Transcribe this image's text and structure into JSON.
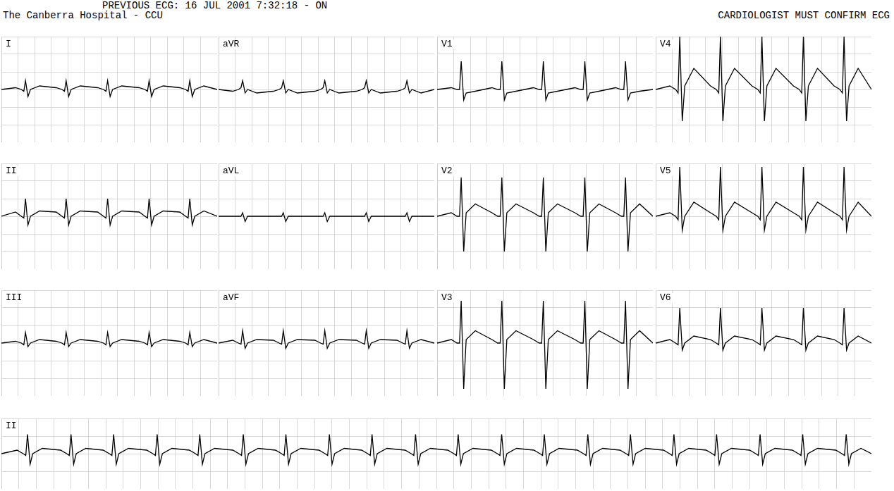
{
  "header": {
    "previous_ecg": "PREVIOUS ECG: 16 JUL 2001  7:32:18 - ON",
    "hospital": "The Canberra Hospital - CCU",
    "notice": "CARDIOLOGIST MUST CONFIRM ECG"
  },
  "chart_data": [
    {
      "type": "line",
      "color": "#000000",
      "grid": true,
      "tick_labels": false,
      "x": [
        0,
        0.17,
        0.24,
        0.27,
        0.29,
        0.32,
        0.35,
        0.46,
        0.66,
        0.73,
        0.76,
        0.78,
        0.81,
        0.84,
        0.95,
        1.16,
        1.23,
        1.26,
        1.28,
        1.31,
        1.34,
        1.45,
        1.66,
        1.73,
        1.76,
        1.78,
        1.81,
        1.84,
        1.95,
        2.15,
        2.22,
        2.25,
        2.27,
        2.3,
        2.33,
        2.44,
        2.6
      ],
      "xlim": [
        0,
        2.6
      ],
      "xticks": [
        0,
        0.2,
        0.4,
        0.6,
        0.8,
        1,
        1.2,
        1.4,
        1.6,
        1.8,
        2,
        2.2,
        2.4,
        2.6
      ],
      "ylim": [
        -1.5,
        1.5
      ],
      "yticks": [
        -1.5,
        -1,
        -0.5,
        0,
        0.5,
        1,
        1.5
      ],
      "series": [
        {
          "name": "I",
          "values": [
            0,
            0.05,
            0,
            -0.05,
            0.25,
            -0.2,
            0,
            0.1,
            0.05,
            0,
            -0.05,
            0.25,
            -0.2,
            0,
            0.1,
            0.05,
            0,
            -0.05,
            0.25,
            -0.2,
            0,
            0.1,
            0.05,
            0,
            -0.05,
            0.25,
            -0.2,
            0,
            0.1,
            0.05,
            0,
            -0.05,
            0.25,
            -0.2,
            0,
            0.1,
            0
          ]
        },
        {
          "name": "II",
          "values": [
            0,
            0.12,
            0,
            -0.05,
            0.5,
            -0.25,
            0,
            0.15,
            0.12,
            0,
            -0.05,
            0.5,
            -0.25,
            0,
            0.15,
            0.12,
            0,
            -0.05,
            0.5,
            -0.25,
            0,
            0.15,
            0.12,
            0,
            -0.05,
            0.5,
            -0.25,
            0,
            0.15,
            0.12,
            0,
            -0.05,
            0.5,
            -0.25,
            0,
            0.15,
            0
          ]
        },
        {
          "name": "III",
          "values": [
            0,
            0.05,
            0,
            -0.05,
            0.3,
            -0.1,
            0,
            0.1,
            0.05,
            0,
            -0.05,
            0.3,
            -0.1,
            0,
            0.1,
            0.05,
            0,
            -0.05,
            0.3,
            -0.1,
            0,
            0.1,
            0.05,
            0,
            -0.05,
            0.3,
            -0.1,
            0,
            0.1,
            0.05,
            0,
            -0.05,
            0.3,
            -0.1,
            0,
            0.1,
            0
          ]
        },
        {
          "name": "aVR",
          "values": [
            0,
            -0.05,
            0,
            0.05,
            0.25,
            -0.1,
            0,
            -0.1,
            -0.05,
            0,
            0.05,
            0.25,
            -0.1,
            0,
            -0.1,
            -0.05,
            0,
            0.05,
            0.25,
            -0.1,
            0,
            -0.1,
            -0.05,
            0,
            0.05,
            0.25,
            -0.1,
            0,
            -0.1,
            -0.05,
            0,
            0.05,
            0.25,
            -0.1,
            0,
            -0.1,
            0
          ]
        },
        {
          "name": "aVL",
          "values": [
            0,
            0,
            0,
            0,
            0.1,
            -0.15,
            0,
            0,
            0,
            0,
            0,
            0.1,
            -0.15,
            0,
            0,
            0,
            0,
            0,
            0.1,
            -0.15,
            0,
            0,
            0,
            0,
            0,
            0.1,
            -0.15,
            0,
            0,
            0,
            0,
            0,
            0.1,
            -0.15,
            0,
            0,
            0
          ]
        },
        {
          "name": "aVF",
          "values": [
            0,
            0.08,
            0,
            -0.03,
            0.35,
            -0.15,
            0,
            0.1,
            0.08,
            0,
            -0.03,
            0.35,
            -0.15,
            0,
            0.1,
            0.08,
            0,
            -0.03,
            0.35,
            -0.15,
            0,
            0.1,
            0.08,
            0,
            -0.03,
            0.35,
            -0.15,
            0,
            0.1,
            0.08,
            0,
            -0.03,
            0.35,
            -0.15,
            0,
            0.1,
            0
          ]
        },
        {
          "name": "V1",
          "values": [
            0,
            0.05,
            0,
            0,
            0.8,
            -0.3,
            -0.1,
            -0.05,
            0.05,
            0,
            0,
            0.8,
            -0.3,
            -0.1,
            -0.05,
            0.05,
            0,
            0,
            0.8,
            -0.3,
            -0.1,
            -0.05,
            0.05,
            0,
            0,
            0.8,
            -0.3,
            -0.1,
            -0.05,
            0.05,
            0,
            0,
            0.8,
            -0.3,
            -0.1,
            -0.05,
            0
          ]
        },
        {
          "name": "V2",
          "values": [
            0,
            0.1,
            0,
            0,
            1.1,
            -1,
            0.1,
            0.35,
            0.1,
            0,
            0,
            1.1,
            -1,
            0.1,
            0.35,
            0.1,
            0,
            0,
            1.1,
            -1,
            0.1,
            0.35,
            0.1,
            0,
            0,
            1.1,
            -1,
            0.1,
            0.35,
            0.1,
            0,
            0,
            1.1,
            -1,
            0.1,
            0.35,
            0
          ]
        },
        {
          "name": "V3",
          "values": [
            0,
            0.1,
            0,
            0,
            1.2,
            -1.3,
            0.1,
            0.35,
            0.1,
            0,
            0,
            1.2,
            -1.3,
            0.1,
            0.35,
            0.1,
            0,
            0,
            1.2,
            -1.3,
            0.1,
            0.35,
            0.1,
            0,
            0,
            1.2,
            -1.3,
            0.1,
            0.35,
            0.1,
            0,
            0,
            1.2,
            -1.3,
            0.1,
            0.35,
            0
          ]
        },
        {
          "name": "V4",
          "values": [
            0,
            0.1,
            0,
            -0.1,
            1.5,
            -0.9,
            0.1,
            0.6,
            0.1,
            0,
            -0.1,
            1.5,
            -0.9,
            0.1,
            0.6,
            0.1,
            0,
            -0.1,
            1.5,
            -0.9,
            0.1,
            0.6,
            0.1,
            0,
            -0.1,
            1.5,
            -0.9,
            0.1,
            0.6,
            0.1,
            0,
            -0.1,
            1.5,
            -0.9,
            0.1,
            0.6,
            0
          ]
        },
        {
          "name": "V5",
          "values": [
            0,
            0.1,
            0,
            -0.1,
            1.4,
            -0.4,
            0,
            0.4,
            0.1,
            0,
            -0.1,
            1.4,
            -0.4,
            0,
            0.4,
            0.1,
            0,
            -0.1,
            1.4,
            -0.4,
            0,
            0.4,
            0.1,
            0,
            -0.1,
            1.4,
            -0.4,
            0,
            0.4,
            0.1,
            0,
            -0.1,
            1.4,
            -0.4,
            0,
            0.4,
            0
          ]
        },
        {
          "name": "V6",
          "values": [
            0,
            0.1,
            0,
            -0.05,
            1,
            -0.2,
            0,
            0.2,
            0.1,
            0,
            -0.05,
            1,
            -0.2,
            0,
            0.2,
            0.1,
            0,
            -0.05,
            1,
            -0.2,
            0,
            0.2,
            0.1,
            0,
            -0.05,
            1,
            -0.2,
            0,
            0.2,
            0.1,
            0,
            -0.05,
            1,
            -0.2,
            0,
            0.2,
            0
          ]
        }
      ]
    },
    {
      "type": "line",
      "color": "#000000",
      "grid": true,
      "tick_labels": false,
      "x": [
        0,
        0.18,
        0.25,
        0.28,
        0.3,
        0.33,
        0.36,
        0.47,
        0.68,
        0.75,
        0.78,
        0.8,
        0.83,
        0.86,
        0.97,
        1.17,
        1.24,
        1.27,
        1.29,
        1.32,
        1.35,
        1.46,
        1.67,
        1.74,
        1.77,
        1.79,
        1.82,
        1.85,
        1.96,
        2.16,
        2.23,
        2.26,
        2.28,
        2.31,
        2.34,
        2.45,
        2.66,
        2.73,
        2.76,
        2.78,
        2.81,
        2.84,
        2.95,
        3.15,
        3.22,
        3.25,
        3.27,
        3.3,
        3.33,
        3.44,
        3.65,
        3.72,
        3.75,
        3.77,
        3.8,
        3.83,
        3.94,
        4.14,
        4.21,
        4.24,
        4.26,
        4.29,
        4.32,
        4.43,
        4.64,
        4.71,
        4.74,
        4.76,
        4.79,
        4.82,
        4.93,
        5.13,
        5.2,
        5.23,
        5.25,
        5.28,
        5.31,
        5.42,
        5.63,
        5.7,
        5.73,
        5.75,
        5.78,
        5.81,
        5.92,
        6.12,
        6.19,
        6.22,
        6.24,
        6.27,
        6.3,
        6.41,
        6.62,
        6.69,
        6.72,
        6.74,
        6.77,
        6.8,
        6.91,
        7.11,
        7.18,
        7.21,
        7.23,
        7.26,
        7.29,
        7.4,
        7.61,
        7.68,
        7.71,
        7.73,
        7.76,
        7.79,
        7.9,
        8.1,
        8.17,
        8.2,
        8.22,
        8.25,
        8.28,
        8.39,
        8.6,
        8.67,
        8.7,
        8.72,
        8.75,
        8.78,
        8.89,
        9.09,
        9.16,
        9.19,
        9.21,
        9.24,
        9.27,
        9.38,
        9.59,
        9.66,
        9.69,
        9.71,
        9.74,
        9.77,
        9.88,
        10
      ],
      "xlim": [
        0,
        10
      ],
      "xticks": [
        0,
        0.2,
        0.4,
        0.6,
        0.8,
        1,
        1.2,
        1.4,
        1.6,
        1.8,
        2,
        2.2,
        2.4,
        2.6,
        2.8,
        3,
        3.2,
        3.4,
        3.6,
        3.8,
        4,
        4.2,
        4.4,
        4.6,
        4.8,
        5,
        5.2,
        5.4,
        5.6,
        5.8,
        6,
        6.2,
        6.4,
        6.6,
        6.8,
        7,
        7.2,
        7.4,
        7.6,
        7.8,
        8,
        8.2,
        8.4,
        8.6,
        8.8,
        9,
        9.2,
        9.4,
        9.6,
        9.8,
        10
      ],
      "ylim": [
        -1,
        1
      ],
      "yticks": [
        -1,
        -0.5,
        0,
        0.5,
        1
      ],
      "series": [
        {
          "name": "II",
          "values": [
            0,
            0.1,
            0,
            -0.05,
            0.55,
            -0.3,
            0,
            0.15,
            0.1,
            0,
            -0.05,
            0.55,
            -0.3,
            0,
            0.15,
            0.1,
            0,
            -0.05,
            0.55,
            -0.3,
            0,
            0.15,
            0.1,
            0,
            -0.05,
            0.55,
            -0.3,
            0,
            0.15,
            0.1,
            0,
            -0.05,
            0.55,
            -0.3,
            0,
            0.15,
            0.1,
            0,
            -0.05,
            0.55,
            -0.3,
            0,
            0.15,
            0.1,
            0,
            -0.05,
            0.55,
            -0.3,
            0,
            0.15,
            0.1,
            0,
            -0.05,
            0.55,
            -0.3,
            0,
            0.15,
            0.1,
            0,
            -0.05,
            0.55,
            -0.3,
            0,
            0.15,
            0.1,
            0,
            -0.05,
            0.55,
            -0.3,
            0,
            0.15,
            0.1,
            0,
            -0.05,
            0.55,
            -0.3,
            0,
            0.15,
            0.1,
            0,
            -0.05,
            0.55,
            -0.3,
            0,
            0.15,
            0.1,
            0,
            -0.05,
            0.55,
            -0.3,
            0,
            0.15,
            0.1,
            0,
            -0.05,
            0.55,
            -0.3,
            0,
            0.15,
            0.1,
            0,
            -0.05,
            0.55,
            -0.3,
            0,
            0.15,
            0.1,
            0,
            -0.05,
            0.55,
            -0.3,
            0,
            0.15,
            0.1,
            0,
            -0.05,
            0.55,
            -0.3,
            0,
            0.15,
            0.1,
            0,
            -0.05,
            0.55,
            -0.3,
            0,
            0.15,
            0.1,
            0,
            -0.05,
            0.55,
            -0.3,
            0,
            0.15,
            0.1,
            0,
            -0.05,
            0.55,
            -0.3,
            0,
            0.15,
            0
          ]
        }
      ]
    }
  ]
}
